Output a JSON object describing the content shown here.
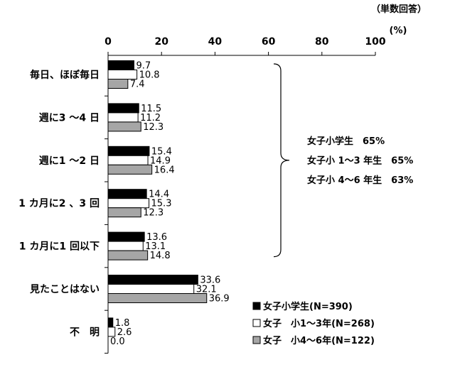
{
  "header": {
    "response_note": "（単数回答）"
  },
  "chart_data": {
    "type": "bar",
    "orientation": "horizontal",
    "unit": "(%)",
    "categories": [
      "毎日、ほぼ毎日",
      "週に3 ～4 日",
      "週に1 ～2 日",
      "1 カ月に2 、3 回",
      "1 カ月に1 回以下",
      "見たことはない",
      "不　明"
    ],
    "series": [
      {
        "name": "女子小学生(N=390)",
        "color": "#000000",
        "values": [
          9.7,
          11.5,
          15.4,
          14.4,
          13.6,
          33.6,
          1.8
        ]
      },
      {
        "name": "女子　小1～3年(N=268)",
        "color": "#ffffff",
        "values": [
          10.8,
          11.2,
          14.9,
          15.3,
          13.1,
          32.1,
          2.6
        ]
      },
      {
        "name": "女子　小4～6年(N=122)",
        "color": "#a6a6a6",
        "values": [
          7.4,
          12.3,
          16.4,
          12.3,
          14.8,
          36.9,
          0.0
        ]
      }
    ],
    "xlim": [
      0,
      100
    ],
    "xticks": [
      0,
      20,
      40,
      60,
      80,
      100
    ],
    "xaxis_position": "top",
    "grid": false,
    "data_labels": true,
    "legend_position": "bottom-right",
    "bracket": {
      "category_range": [
        0,
        4
      ],
      "lines": [
        "女子小学生　65%",
        "女子小 1～3 年生　65%",
        "女子小 4～6 年生　63%"
      ]
    }
  }
}
